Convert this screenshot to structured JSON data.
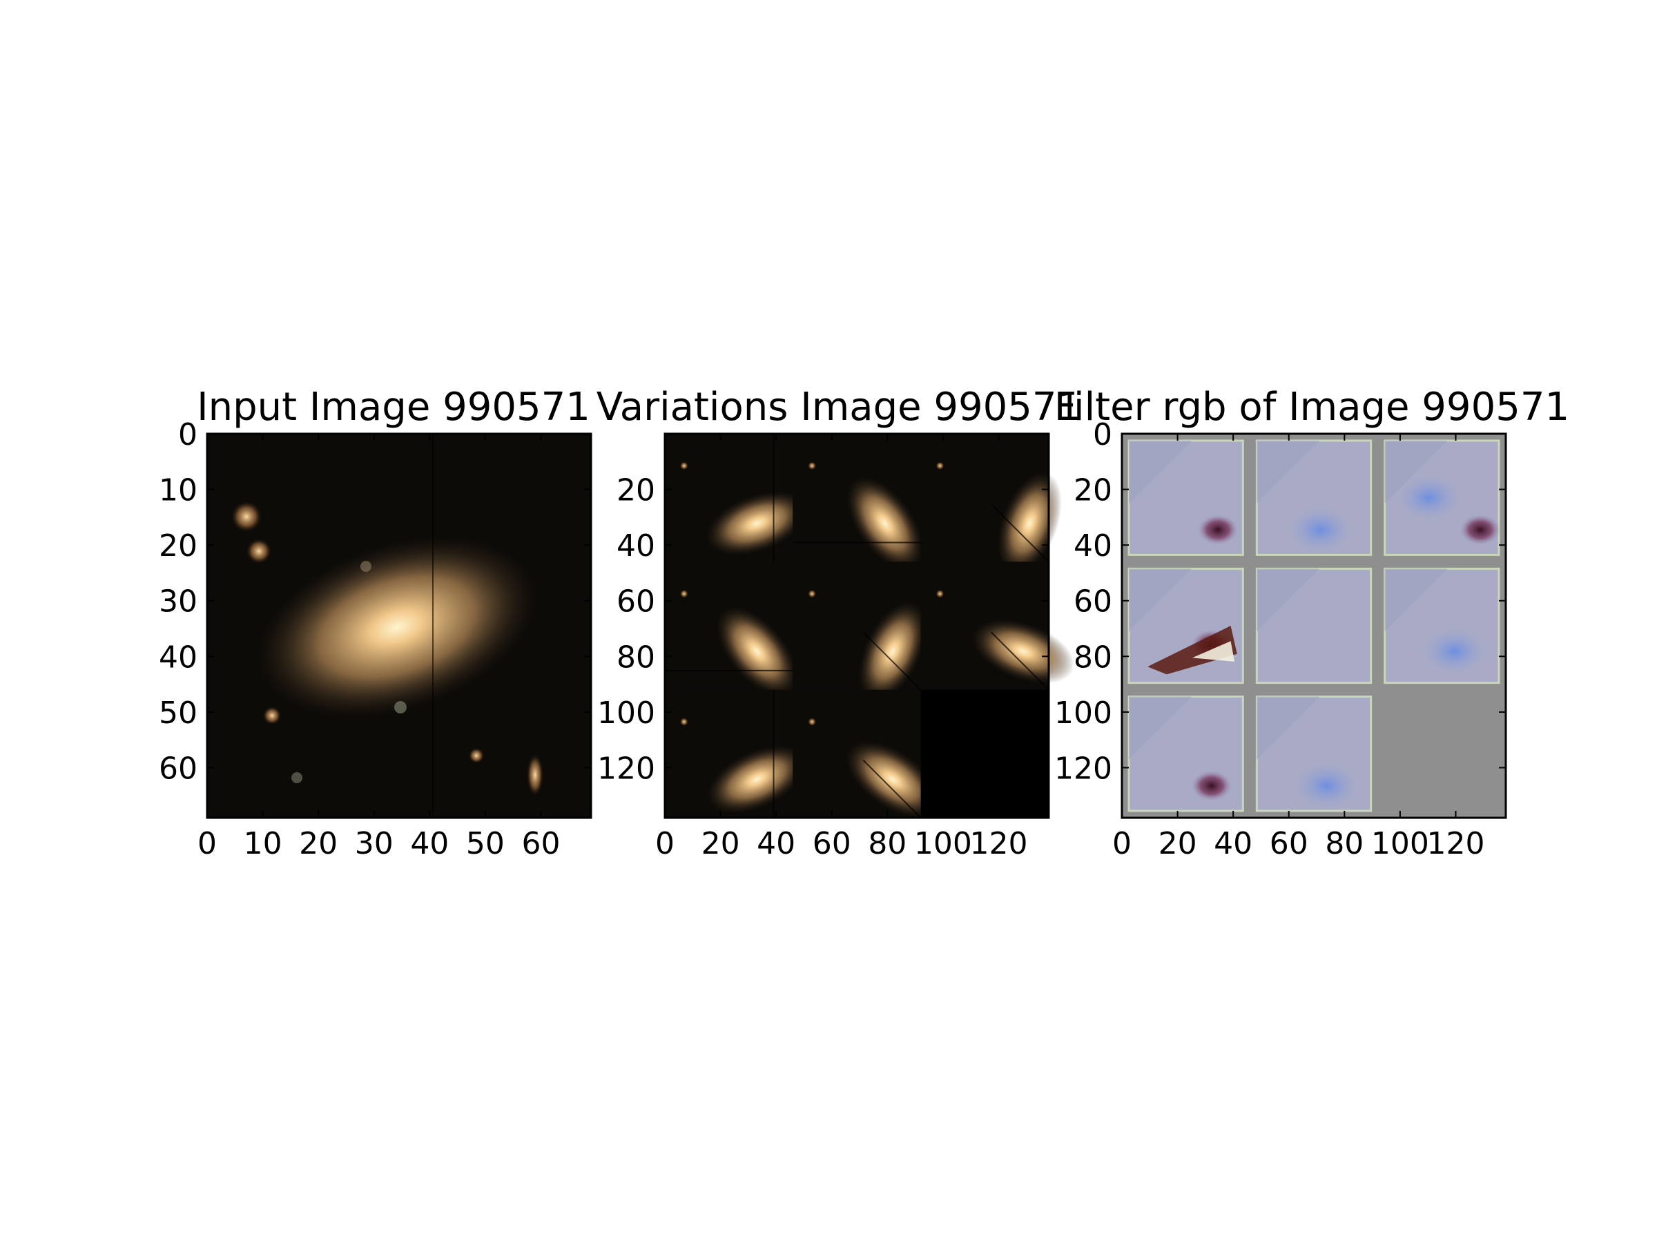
{
  "panels": [
    {
      "title": "Input Image 990571",
      "x_ticks": [
        "0",
        "10",
        "20",
        "30",
        "40",
        "50",
        "60"
      ],
      "y_ticks": [
        "0",
        "10",
        "20",
        "30",
        "40",
        "50",
        "60"
      ],
      "extent": 69,
      "kind": "galaxy"
    },
    {
      "title": "Variations Image 990571",
      "x_ticks": [
        "0",
        "20",
        "40",
        "60",
        "80",
        "100",
        "120"
      ],
      "y_ticks": [
        "20",
        "40",
        "60",
        "80",
        "100",
        "120"
      ],
      "extent": 138,
      "kind": "variations"
    },
    {
      "title": "Filter rgb of Image 990571",
      "x_ticks": [
        "0",
        "20",
        "40",
        "60",
        "80",
        "100",
        "120"
      ],
      "y_ticks": [
        "0",
        "20",
        "40",
        "60",
        "80",
        "100",
        "120"
      ],
      "extent": 138,
      "kind": "filters"
    }
  ],
  "colors": {
    "sky": "#0d0b08",
    "galaxy_core": "#fff1c2",
    "galaxy_halo": "#c79a63",
    "filter_bg": "#8f8f8f",
    "filter_tile": "#a7a9c4",
    "filter_blue": "#5f7fd0",
    "filter_dark": "#4a1f33"
  }
}
